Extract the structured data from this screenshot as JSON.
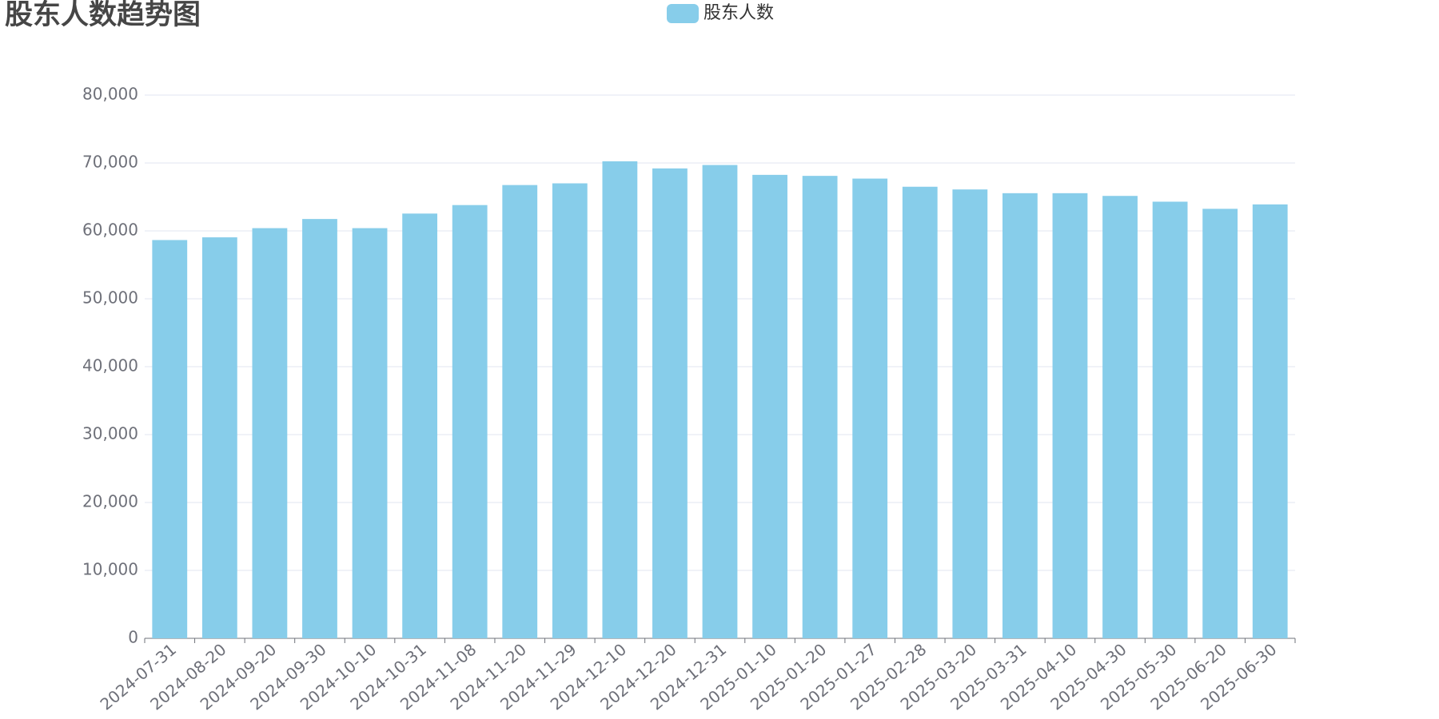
{
  "chart_data": {
    "type": "bar",
    "title": "股东人数趋势图",
    "categories": [
      "2024-07-31",
      "2024-08-20",
      "2024-09-20",
      "2024-09-30",
      "2024-10-10",
      "2024-10-31",
      "2024-11-08",
      "2024-11-20",
      "2024-11-29",
      "2024-12-10",
      "2024-12-20",
      "2024-12-31",
      "2025-01-10",
      "2025-01-20",
      "2025-01-27",
      "2025-02-28",
      "2025-03-20",
      "2025-03-31",
      "2025-04-10",
      "2025-04-30",
      "2025-05-30",
      "2025-06-20",
      "2025-06-30"
    ],
    "series": [
      {
        "name": "股东人数",
        "color": "#87cdea",
        "values": [
          58650,
          59050,
          60400,
          61750,
          60400,
          62550,
          63800,
          66750,
          67000,
          70250,
          69200,
          69700,
          68250,
          68100,
          67700,
          66500,
          66100,
          65550,
          65550,
          65150,
          64300,
          63250,
          63900
        ]
      }
    ],
    "ylim": [
      0,
      80000
    ],
    "yticks": [
      0,
      {
        "value": 10000,
        "label": "10,000"
      },
      {
        "value": 20000,
        "label": "20,000"
      },
      {
        "value": 30000,
        "label": "30,000"
      },
      {
        "value": 40000,
        "label": "40,000"
      },
      {
        "value": 50000,
        "label": "50,000"
      },
      {
        "value": 60000,
        "label": "60,000"
      },
      {
        "value": 70000,
        "label": "70,000"
      },
      {
        "value": 80000,
        "label": "80,000"
      }
    ],
    "grid": true,
    "legend": "top"
  }
}
